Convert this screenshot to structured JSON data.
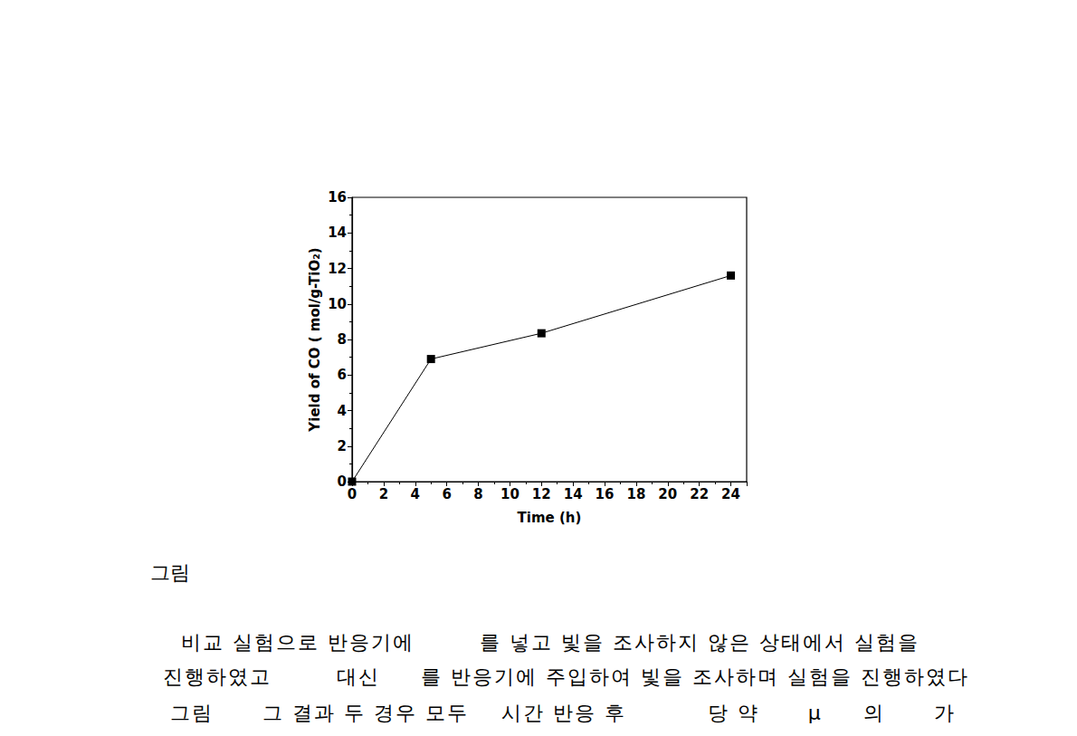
{
  "chart_data": {
    "type": "line",
    "x": [
      0,
      5,
      12,
      24
    ],
    "values": [
      0,
      6.9,
      8.35,
      11.6
    ],
    "xlabel": "Time (h)",
    "ylabel": "Yield of CO ( mol/g-TiO₂)",
    "xlim": [
      0,
      25
    ],
    "xticks": [
      0,
      2,
      4,
      6,
      8,
      10,
      12,
      14,
      16,
      18,
      20,
      22,
      24
    ],
    "ylim": [
      0,
      16
    ],
    "yticks": [
      0,
      2,
      4,
      6,
      8,
      10,
      12,
      14,
      16
    ],
    "color": "#000000",
    "marker": "square",
    "grid": false
  },
  "text": {
    "caption": "그림",
    "lines": [
      "비교 실험으로 반응기에        를 넣고 빛을 조사하지 않은 상태에서 실험을",
      "진행하였고        대신     를 반응기에 주입하여 빛을 조사하며 실험을 진행하였다",
      "그림      그 결과 두 경우 모두    시간 반응 후          당 약      μ     의      가"
    ]
  }
}
